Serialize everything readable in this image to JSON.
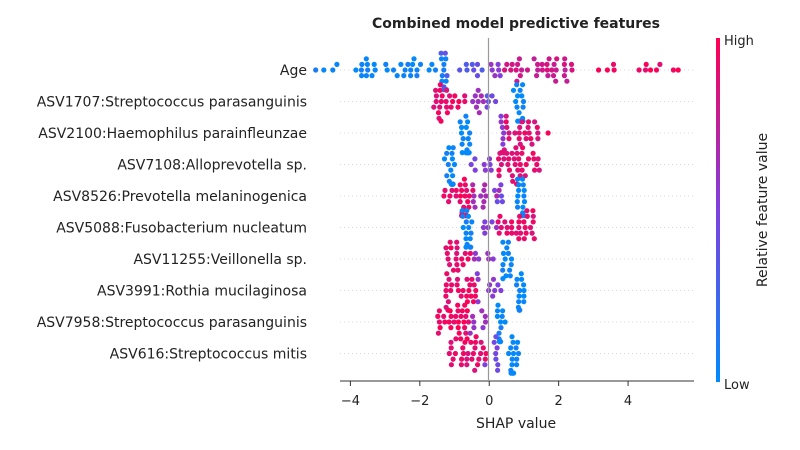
{
  "chart_data": {
    "type": "scatter",
    "subtype": "shap-beeswarm",
    "title": "Combined model predictive features",
    "xlabel": "SHAP value",
    "xlim": [
      -4.3,
      5.9
    ],
    "xticks": [
      -4,
      -2,
      0,
      2,
      4
    ],
    "xtick_labels": [
      "−4",
      "−2",
      "0",
      "2",
      "4"
    ],
    "grid": false,
    "colorbar": {
      "label": "Relative feature value",
      "high_label": "High",
      "low_label": "Low",
      "low_color": "#008bfb",
      "high_color": "#ff0052"
    },
    "features": [
      {
        "name": "Age",
        "clusters": [
          {
            "center": -3.0,
            "half": 2.0,
            "count": 40,
            "feature_value": 0.05
          },
          {
            "center": -0.8,
            "half": 0.6,
            "count": 14,
            "feature_value": 0.35
          },
          {
            "center": 0.2,
            "half": 0.15,
            "count": 6,
            "feature_value": 0.55
          },
          {
            "center": 1.4,
            "half": 1.0,
            "count": 34,
            "feature_value": 0.8
          },
          {
            "center": 4.0,
            "half": 1.0,
            "count": 10,
            "feature_value": 0.95
          },
          {
            "center": 5.4,
            "half": 0.1,
            "count": 2,
            "feature_value": 1.0
          }
        ]
      },
      {
        "name": "ASV1707:Streptococcus parasanguinis",
        "clusters": [
          {
            "center": -1.15,
            "half": 0.45,
            "count": 24,
            "feature_value": 0.92
          },
          {
            "center": -0.4,
            "half": 0.25,
            "count": 8,
            "feature_value": 0.6
          },
          {
            "center": 0.0,
            "half": 0.2,
            "count": 5,
            "feature_value": 0.4
          },
          {
            "center": 0.85,
            "half": 0.15,
            "count": 18,
            "feature_value": 0.02
          }
        ]
      },
      {
        "name": "ASV2100:Haemophilus parainfleunzae",
        "clusters": [
          {
            "center": -0.7,
            "half": 0.15,
            "count": 20,
            "feature_value": 0.03
          },
          {
            "center": 0.25,
            "half": 0.2,
            "count": 6,
            "feature_value": 0.55
          },
          {
            "center": 0.9,
            "half": 0.55,
            "count": 28,
            "feature_value": 0.88
          },
          {
            "center": 1.68,
            "half": 0.03,
            "count": 1,
            "feature_value": 1.0
          }
        ]
      },
      {
        "name": "ASV7108:Alloprevotella sp.",
        "clusters": [
          {
            "center": -1.15,
            "half": 0.15,
            "count": 18,
            "feature_value": 0.03
          },
          {
            "center": -0.2,
            "half": 0.35,
            "count": 8,
            "feature_value": 0.5
          },
          {
            "center": 0.8,
            "half": 0.65,
            "count": 34,
            "feature_value": 0.9
          }
        ]
      },
      {
        "name": "ASV8526:Prevotella melaninogenica",
        "clusters": [
          {
            "center": -0.9,
            "half": 0.45,
            "count": 24,
            "feature_value": 0.93
          },
          {
            "center": -0.1,
            "half": 0.4,
            "count": 12,
            "feature_value": 0.65
          },
          {
            "center": 0.3,
            "half": 0.15,
            "count": 5,
            "feature_value": 0.45
          },
          {
            "center": 0.9,
            "half": 0.12,
            "count": 16,
            "feature_value": 0.02
          }
        ]
      },
      {
        "name": "ASV5088:Fusobacterium nucleatum",
        "clusters": [
          {
            "center": -0.65,
            "half": 0.15,
            "count": 16,
            "feature_value": 0.04
          },
          {
            "center": 0.1,
            "half": 0.3,
            "count": 6,
            "feature_value": 0.55
          },
          {
            "center": 0.8,
            "half": 0.55,
            "count": 28,
            "feature_value": 0.9
          }
        ]
      },
      {
        "name": "ASV11255:Veillonella sp.",
        "clusters": [
          {
            "center": -0.85,
            "half": 0.4,
            "count": 18,
            "feature_value": 0.92
          },
          {
            "center": -0.15,
            "half": 0.3,
            "count": 6,
            "feature_value": 0.6
          },
          {
            "center": 0.5,
            "half": 0.15,
            "count": 14,
            "feature_value": 0.03
          }
        ]
      },
      {
        "name": "ASV3991:Rothia mucilaginosa",
        "clusters": [
          {
            "center": -0.8,
            "half": 0.45,
            "count": 26,
            "feature_value": 0.92
          },
          {
            "center": 0.0,
            "half": 0.35,
            "count": 10,
            "feature_value": 0.55
          },
          {
            "center": 0.9,
            "half": 0.12,
            "count": 14,
            "feature_value": 0.02
          }
        ]
      },
      {
        "name": "ASV7958:Streptococcus parasanguinis",
        "clusters": [
          {
            "center": -1.05,
            "half": 0.5,
            "count": 30,
            "feature_value": 0.95
          },
          {
            "center": -0.3,
            "half": 0.25,
            "count": 8,
            "feature_value": 0.6
          },
          {
            "center": 0.35,
            "half": 0.12,
            "count": 12,
            "feature_value": 0.04
          }
        ]
      },
      {
        "name": "ASV616:Streptococcus mitis",
        "clusters": [
          {
            "center": -0.6,
            "half": 0.55,
            "count": 28,
            "feature_value": 0.9
          },
          {
            "center": 0.05,
            "half": 0.2,
            "count": 8,
            "feature_value": 0.45
          },
          {
            "center": 0.7,
            "half": 0.15,
            "count": 16,
            "feature_value": 0.03
          }
        ]
      }
    ]
  }
}
